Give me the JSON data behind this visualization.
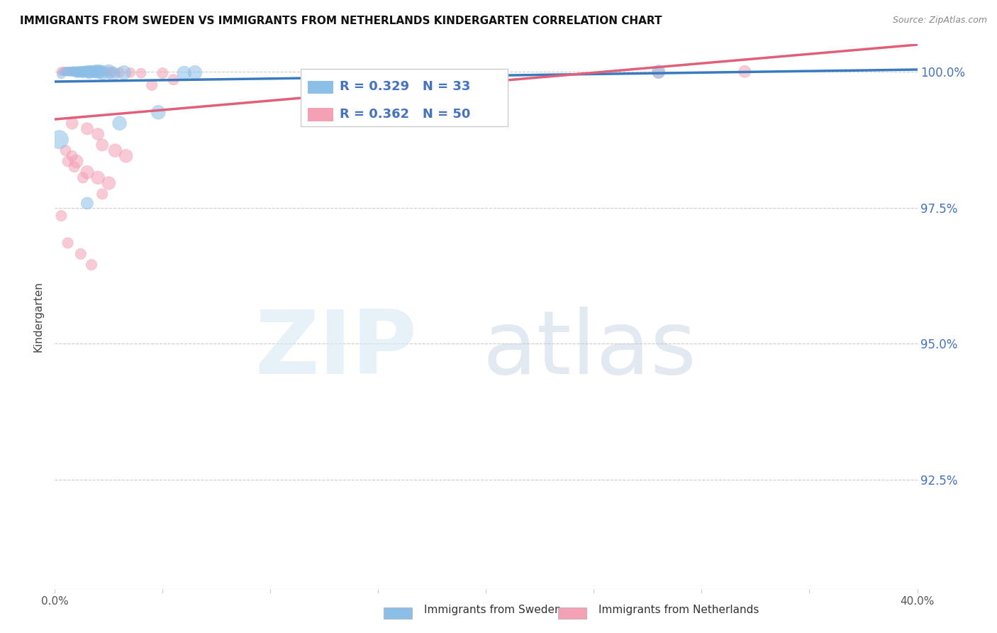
{
  "title": "IMMIGRANTS FROM SWEDEN VS IMMIGRANTS FROM NETHERLANDS KINDERGARTEN CORRELATION CHART",
  "source": "Source: ZipAtlas.com",
  "ylabel": "Kindergarten",
  "ytick_labels": [
    "100.0%",
    "97.5%",
    "95.0%",
    "92.5%"
  ],
  "ytick_values": [
    1.0,
    0.975,
    0.95,
    0.925
  ],
  "xlim": [
    0.0,
    0.4
  ],
  "ylim": [
    0.905,
    1.005
  ],
  "legend_sweden": {
    "R": "0.329",
    "N": "33",
    "color": "#8bbfe8"
  },
  "legend_netherlands": {
    "R": "0.362",
    "N": "50",
    "color": "#f4a0b5"
  },
  "sweden_color": "#8bbfe8",
  "netherlands_color": "#f4a0b5",
  "sweden_color_line": "#3a7abf",
  "netherlands_color_line": "#e0607a",
  "sweden_data": [
    [
      0.003,
      0.9995
    ],
    [
      0.005,
      1.0
    ],
    [
      0.006,
      1.0
    ],
    [
      0.007,
      1.0
    ],
    [
      0.008,
      1.0
    ],
    [
      0.009,
      1.0
    ],
    [
      0.01,
      1.0
    ],
    [
      0.01,
      0.9998
    ],
    [
      0.011,
      1.0
    ],
    [
      0.011,
      0.9998
    ],
    [
      0.012,
      1.0
    ],
    [
      0.013,
      1.0
    ],
    [
      0.013,
      0.9998
    ],
    [
      0.014,
      1.0
    ],
    [
      0.015,
      1.0
    ],
    [
      0.016,
      1.0
    ],
    [
      0.016,
      0.9998
    ],
    [
      0.017,
      1.0
    ],
    [
      0.018,
      1.0
    ],
    [
      0.019,
      1.0
    ],
    [
      0.02,
      1.0
    ],
    [
      0.021,
      1.0
    ],
    [
      0.022,
      0.9998
    ],
    [
      0.025,
      1.0
    ],
    [
      0.027,
      0.9996
    ],
    [
      0.032,
      0.9998
    ],
    [
      0.06,
      0.9997
    ],
    [
      0.065,
      0.9998
    ],
    [
      0.002,
      0.9875
    ],
    [
      0.03,
      0.9905
    ],
    [
      0.048,
      0.9925
    ],
    [
      0.015,
      0.9758
    ],
    [
      0.28,
      1.0
    ]
  ],
  "netherlands_data": [
    [
      0.003,
      1.0
    ],
    [
      0.004,
      1.0
    ],
    [
      0.005,
      1.0
    ],
    [
      0.006,
      1.0
    ],
    [
      0.007,
      1.0
    ],
    [
      0.008,
      1.0
    ],
    [
      0.009,
      1.0
    ],
    [
      0.01,
      1.0
    ],
    [
      0.011,
      1.0
    ],
    [
      0.012,
      1.0
    ],
    [
      0.013,
      1.0
    ],
    [
      0.014,
      1.0
    ],
    [
      0.015,
      0.9998
    ],
    [
      0.016,
      1.0
    ],
    [
      0.017,
      1.0
    ],
    [
      0.018,
      1.0
    ],
    [
      0.019,
      1.0
    ],
    [
      0.02,
      1.0
    ],
    [
      0.021,
      1.0
    ],
    [
      0.022,
      0.9998
    ],
    [
      0.025,
      1.0
    ],
    [
      0.027,
      0.9998
    ],
    [
      0.03,
      0.9998
    ],
    [
      0.035,
      0.9998
    ],
    [
      0.04,
      0.9997
    ],
    [
      0.05,
      0.9997
    ],
    [
      0.045,
      0.9975
    ],
    [
      0.055,
      0.9985
    ],
    [
      0.008,
      0.9905
    ],
    [
      0.015,
      0.9895
    ],
    [
      0.02,
      0.9885
    ],
    [
      0.022,
      0.9865
    ],
    [
      0.028,
      0.9855
    ],
    [
      0.033,
      0.9845
    ],
    [
      0.01,
      0.9835
    ],
    [
      0.015,
      0.9815
    ],
    [
      0.02,
      0.9805
    ],
    [
      0.025,
      0.9795
    ],
    [
      0.005,
      0.9855
    ],
    [
      0.008,
      0.9845
    ],
    [
      0.006,
      0.9835
    ],
    [
      0.009,
      0.9825
    ],
    [
      0.013,
      0.9805
    ],
    [
      0.022,
      0.9775
    ],
    [
      0.003,
      0.9735
    ],
    [
      0.006,
      0.9685
    ],
    [
      0.32,
      1.0
    ],
    [
      0.28,
      0.9998
    ],
    [
      0.012,
      0.9665
    ],
    [
      0.017,
      0.9645
    ]
  ],
  "sweden_sizes": [
    80,
    80,
    80,
    80,
    100,
    100,
    100,
    100,
    100,
    100,
    120,
    120,
    120,
    120,
    150,
    150,
    150,
    150,
    150,
    180,
    180,
    180,
    200,
    200,
    200,
    200,
    200,
    200,
    350,
    200,
    200,
    150,
    180
  ],
  "netherlands_sizes": [
    80,
    80,
    80,
    80,
    80,
    80,
    80,
    80,
    80,
    80,
    80,
    80,
    80,
    80,
    80,
    80,
    80,
    80,
    80,
    80,
    100,
    100,
    100,
    100,
    100,
    120,
    120,
    120,
    150,
    150,
    150,
    150,
    180,
    180,
    180,
    180,
    180,
    180,
    120,
    120,
    120,
    120,
    120,
    120,
    120,
    120,
    150,
    150,
    120,
    120
  ]
}
